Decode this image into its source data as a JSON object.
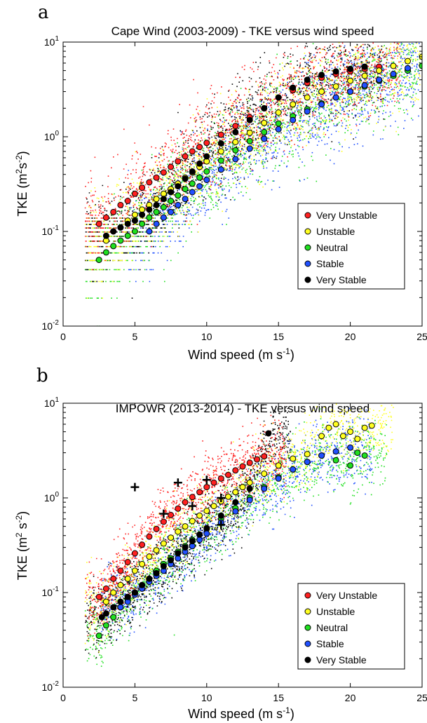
{
  "chart_data": [
    {
      "panel": "a",
      "type": "scatter",
      "title": "Cape Wind (2003-2009) - TKE versus wind speed",
      "xlabel": "Wind speed (m s",
      "xlabel_sup": "-1",
      "xlabel_end": ")",
      "ylabel": "TKE (m",
      "ylabel_sup1": "2",
      "ylabel_mid": "s",
      "ylabel_sup2": "-2",
      "ylabel_end": ")",
      "xlim": [
        0,
        25
      ],
      "ylim": [
        0.01,
        10
      ],
      "yscale": "log",
      "xticks": [
        "0",
        "5",
        "10",
        "15",
        "20",
        "25"
      ],
      "yticks": [
        {
          "base": "10",
          "exp": "-2"
        },
        {
          "base": "10",
          "exp": "-1"
        },
        {
          "base": "10",
          "exp": "0"
        },
        {
          "base": "10",
          "exp": "1"
        }
      ],
      "legend_position": "lower-right",
      "series": [
        {
          "name": "Very Unstable",
          "color": "#ff2020",
          "x": [
            2.5,
            3.0,
            3.5,
            4.0,
            4.5,
            5.0,
            5.5,
            6.0,
            6.5,
            7.0,
            7.5,
            8.0,
            8.5,
            9.0,
            9.5,
            10.0,
            11.0,
            12.0,
            13.0,
            14.0,
            15.0,
            16.0,
            17.0,
            18.0,
            19.0,
            20.0,
            21.0,
            22.0
          ],
          "y": [
            0.12,
            0.14,
            0.16,
            0.19,
            0.21,
            0.25,
            0.29,
            0.33,
            0.37,
            0.42,
            0.48,
            0.55,
            0.62,
            0.7,
            0.78,
            0.86,
            1.05,
            1.3,
            1.6,
            2.0,
            2.6,
            3.1,
            3.7,
            4.2,
            4.6,
            4.9,
            5.2,
            5.5
          ]
        },
        {
          "name": "Unstable",
          "color": "#ffff20",
          "x": [
            3.0,
            3.5,
            4.0,
            4.5,
            5.0,
            5.5,
            6.0,
            6.5,
            7.0,
            7.5,
            8.0,
            8.5,
            9.0,
            9.5,
            10.0,
            11.0,
            12.0,
            13.0,
            14.0,
            15.0,
            16.0,
            17.0,
            18.0,
            19.0,
            20.0,
            21.0,
            22.0,
            23.0,
            24.0,
            25.0
          ],
          "y": [
            0.08,
            0.1,
            0.11,
            0.13,
            0.15,
            0.17,
            0.19,
            0.22,
            0.25,
            0.28,
            0.32,
            0.37,
            0.42,
            0.48,
            0.55,
            0.7,
            0.88,
            1.1,
            1.4,
            1.8,
            2.2,
            2.6,
            3.0,
            3.4,
            3.9,
            4.4,
            5.0,
            5.6,
            6.3,
            7.0
          ]
        },
        {
          "name": "Neutral",
          "color": "#20e020",
          "x": [
            2.5,
            3.0,
            3.5,
            4.0,
            4.5,
            5.0,
            5.5,
            6.0,
            6.5,
            7.0,
            7.5,
            8.0,
            8.5,
            9.0,
            9.5,
            10.0,
            11.0,
            12.0,
            13.0,
            14.0,
            15.0,
            16.0,
            17.0,
            18.0,
            19.0,
            20.0,
            21.0,
            22.0,
            23.0,
            24.0,
            25.0
          ],
          "y": [
            0.05,
            0.06,
            0.07,
            0.08,
            0.09,
            0.1,
            0.12,
            0.14,
            0.16,
            0.18,
            0.21,
            0.24,
            0.28,
            0.32,
            0.37,
            0.43,
            0.56,
            0.72,
            0.9,
            1.12,
            1.38,
            1.65,
            1.95,
            2.25,
            2.6,
            3.0,
            3.4,
            3.9,
            4.4,
            5.0,
            5.6
          ]
        },
        {
          "name": "Stable",
          "color": "#2050ff",
          "x": [
            6.0,
            6.5,
            7.0,
            7.5,
            8.0,
            8.5,
            9.0,
            9.5,
            10.0,
            11.0,
            12.0,
            13.0,
            14.0,
            15.0,
            16.0,
            17.0,
            18.0,
            19.0,
            20.0,
            21.0,
            22.0,
            23.0,
            24.0
          ],
          "y": [
            0.1,
            0.12,
            0.14,
            0.16,
            0.19,
            0.22,
            0.26,
            0.3,
            0.35,
            0.45,
            0.58,
            0.75,
            0.95,
            1.2,
            1.5,
            1.85,
            2.2,
            2.6,
            3.0,
            3.5,
            4.0,
            4.6,
            5.3
          ]
        },
        {
          "name": "Very Stable",
          "color": "#000000",
          "x": [
            3.0,
            3.5,
            4.0,
            4.5,
            5.0,
            5.5,
            6.0,
            6.5,
            7.0,
            7.5,
            8.0,
            8.5,
            9.0,
            9.5,
            10.0,
            11.0,
            12.0,
            13.0,
            14.0,
            15.0,
            16.0,
            17.0,
            18.0,
            19.0,
            20.0,
            21.0
          ],
          "y": [
            0.09,
            0.1,
            0.11,
            0.12,
            0.13,
            0.15,
            0.17,
            0.19,
            0.22,
            0.26,
            0.3,
            0.36,
            0.43,
            0.52,
            0.62,
            0.85,
            1.12,
            1.5,
            2.0,
            2.6,
            3.3,
            4.0,
            4.5,
            4.9,
            5.2,
            5.5
          ]
        }
      ]
    },
    {
      "panel": "b",
      "type": "scatter",
      "title": "IMPOWR (2013-2014) - TKE versus wind speed",
      "xlabel": "Wind speed (m s",
      "xlabel_sup": "-1",
      "xlabel_end": ")",
      "ylabel": "TKE (m",
      "ylabel_sup1": "2",
      "ylabel_mid": " s",
      "ylabel_sup2": "-2",
      "ylabel_end": ")",
      "xlim": [
        0,
        25
      ],
      "ylim": [
        0.01,
        10
      ],
      "yscale": "log",
      "xticks": [
        "0",
        "5",
        "10",
        "15",
        "20",
        "25"
      ],
      "yticks": [
        {
          "base": "10",
          "exp": "-2"
        },
        {
          "base": "10",
          "exp": "-1"
        },
        {
          "base": "10",
          "exp": "0"
        },
        {
          "base": "10",
          "exp": "1"
        }
      ],
      "legend_position": "lower-right",
      "series": [
        {
          "name": "Very Unstable",
          "color": "#ff2020",
          "x": [
            2.5,
            3.0,
            3.5,
            4.0,
            4.5,
            5.0,
            5.5,
            6.0,
            6.5,
            7.0,
            7.5,
            8.0,
            8.5,
            9.0,
            9.5,
            10.0,
            10.5,
            11.0,
            11.5,
            12.0,
            12.5,
            13.0,
            13.5,
            14.0
          ],
          "y": [
            0.09,
            0.11,
            0.14,
            0.17,
            0.21,
            0.26,
            0.32,
            0.39,
            0.47,
            0.56,
            0.66,
            0.77,
            0.9,
            1.02,
            1.15,
            1.3,
            1.45,
            1.6,
            1.75,
            1.95,
            2.15,
            2.35,
            2.55,
            2.75
          ]
        },
        {
          "name": "Unstable",
          "color": "#ffff20",
          "x": [
            3.0,
            3.5,
            4.0,
            4.5,
            5.0,
            5.5,
            6.0,
            6.5,
            7.0,
            7.5,
            8.0,
            8.5,
            9.0,
            9.5,
            10.0,
            10.5,
            11.0,
            11.5,
            12.0,
            12.5,
            13.0,
            14.0,
            15.0,
            16.0,
            17.0,
            18.0,
            18.5,
            19.0,
            19.5,
            20.0,
            20.5,
            21.0,
            21.5
          ],
          "y": [
            0.08,
            0.1,
            0.12,
            0.14,
            0.17,
            0.2,
            0.24,
            0.28,
            0.33,
            0.38,
            0.44,
            0.5,
            0.57,
            0.65,
            0.73,
            0.82,
            0.92,
            1.03,
            1.15,
            1.3,
            1.45,
            1.8,
            2.2,
            2.6,
            2.9,
            4.5,
            5.5,
            6.0,
            4.5,
            5.0,
            4.2,
            5.5,
            5.8
          ]
        },
        {
          "name": "Neutral",
          "color": "#20e020",
          "x": [
            2.5,
            3.0,
            3.5,
            4.0,
            4.5,
            5.0,
            5.5,
            6.0,
            6.5,
            7.0,
            7.5,
            8.0,
            8.5,
            9.0,
            9.5,
            10.0,
            11.0,
            12.0,
            13.0,
            14.0,
            15.0,
            16.0,
            17.0,
            18.0,
            19.0,
            20.0,
            20.5,
            21.0
          ],
          "y": [
            0.035,
            0.045,
            0.055,
            0.07,
            0.085,
            0.1,
            0.12,
            0.14,
            0.17,
            0.2,
            0.23,
            0.27,
            0.31,
            0.36,
            0.41,
            0.47,
            0.6,
            0.78,
            1.0,
            1.3,
            1.65,
            2.0,
            2.4,
            2.8,
            2.5,
            2.2,
            3.0,
            2.8
          ]
        },
        {
          "name": "Stable",
          "color": "#2050ff",
          "x": [
            4.0,
            4.5,
            5.0,
            5.5,
            6.0,
            6.5,
            7.0,
            7.5,
            8.0,
            8.5,
            9.0,
            9.5,
            10.0,
            11.0,
            12.0,
            13.0,
            14.0,
            15.0,
            16.0,
            17.0,
            18.0,
            19.0,
            20.0
          ],
          "y": [
            0.07,
            0.08,
            0.095,
            0.11,
            0.13,
            0.15,
            0.17,
            0.2,
            0.23,
            0.27,
            0.31,
            0.36,
            0.42,
            0.55,
            0.72,
            0.95,
            1.25,
            1.6,
            2.0,
            2.4,
            2.8,
            3.1,
            3.4
          ]
        },
        {
          "name": "Very Stable",
          "color": "#000000",
          "x": [
            2.7,
            3.0,
            3.5,
            4.0,
            4.5,
            5.0,
            5.5,
            6.0,
            6.5,
            7.0,
            7.5,
            8.0,
            8.5,
            9.0,
            9.5,
            10.0,
            11.0,
            12.0,
            13.0,
            14.3
          ],
          "y": [
            0.055,
            0.06,
            0.07,
            0.08,
            0.09,
            0.1,
            0.12,
            0.14,
            0.16,
            0.19,
            0.22,
            0.26,
            0.3,
            0.35,
            0.41,
            0.48,
            0.65,
            0.9,
            1.25,
            4.8
          ]
        }
      ],
      "crosses": {
        "x": [
          5.0,
          8.0,
          10.0,
          11.0,
          7.0,
          9.0,
          11.0
        ],
        "y": [
          1.3,
          1.45,
          1.55,
          1.0,
          0.68,
          0.82,
          0.52
        ]
      }
    }
  ]
}
